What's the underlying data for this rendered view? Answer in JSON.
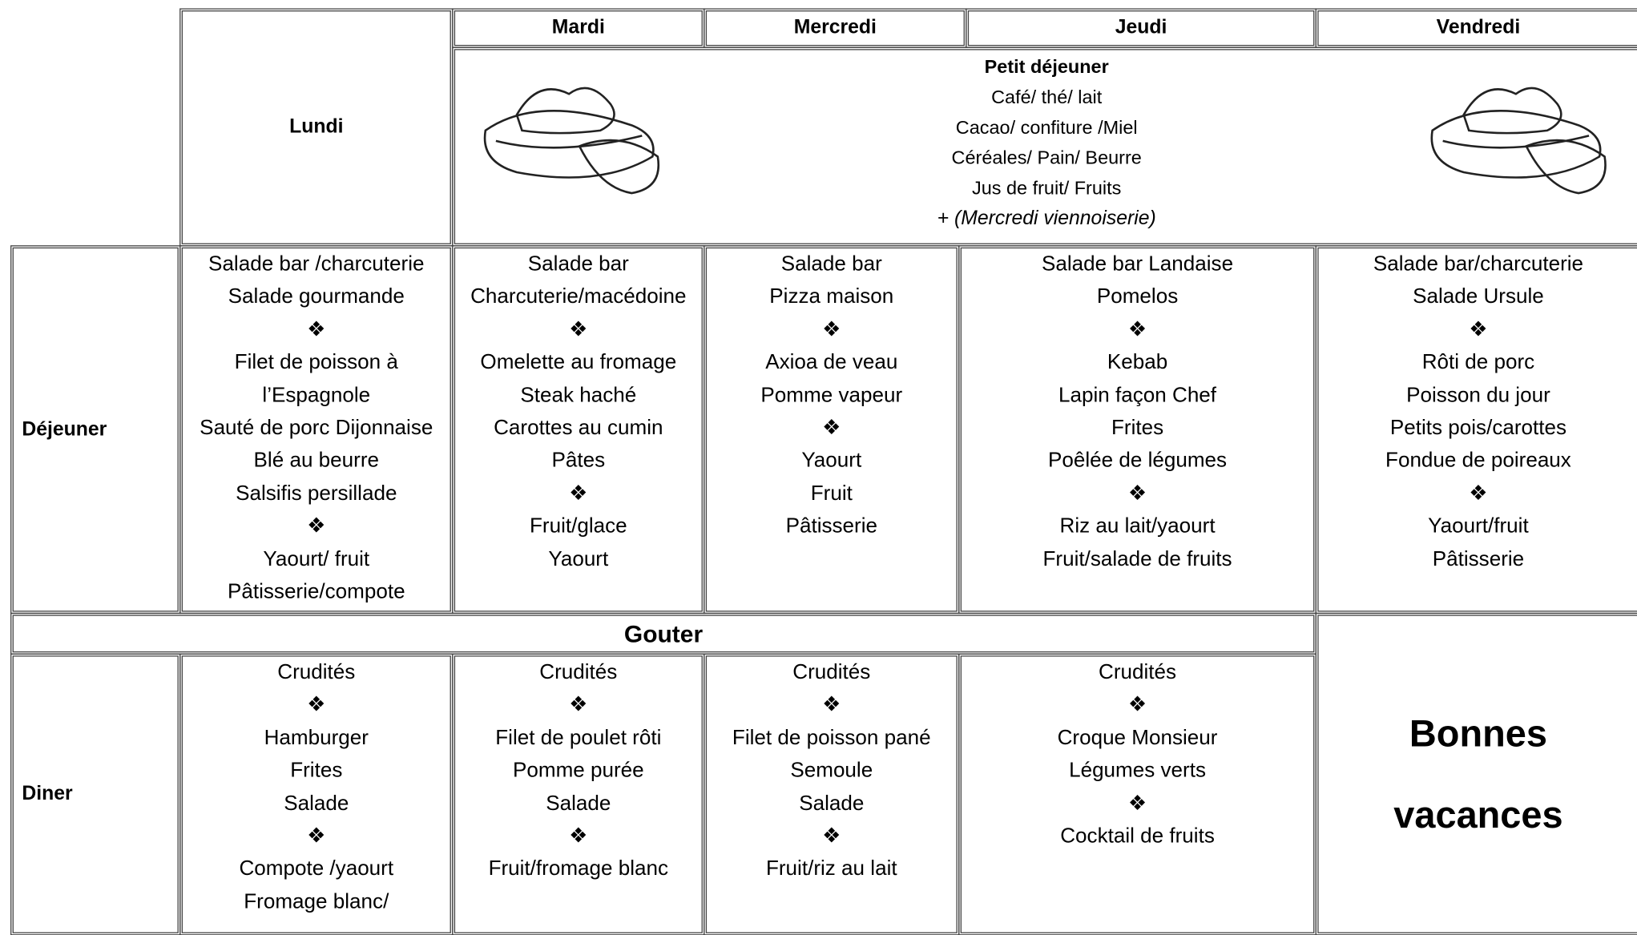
{
  "header": {
    "days": [
      "Lundi",
      "Mardi",
      "Mercredi",
      "Jeudi",
      "Vendredi"
    ]
  },
  "breakfast": {
    "title": "Petit déjeuner",
    "lines": [
      "Café/ thé/ lait",
      "Cacao/ confiture /Miel",
      "Céréales/ Pain/ Beurre",
      "Jus de fruit/ Fruits"
    ],
    "note": "+ (Mercredi viennoiserie)"
  },
  "lunch": {
    "label": "Déjeuner",
    "cells": [
      [
        "Salade bar /charcuterie",
        "Salade gourmande",
        "❖",
        "Filet de poisson à",
        "l’Espagnole",
        "Sauté de porc Dijonnaise",
        "Blé au beurre",
        "Salsifis persillade",
        "❖",
        "Yaourt/ fruit",
        "Pâtisserie/compote"
      ],
      [
        "Salade bar",
        "Charcuterie/macédoine",
        "❖",
        "Omelette au fromage",
        "Steak haché",
        "Carottes au cumin",
        "Pâtes",
        "❖",
        "Fruit/glace",
        "Yaourt"
      ],
      [
        "Salade bar",
        "Pizza maison",
        "❖",
        "Axioa de veau",
        "Pomme vapeur",
        "❖",
        "Yaourt",
        "Fruit",
        "Pâtisserie"
      ],
      [
        "Salade bar Landaise",
        "Pomelos",
        "❖",
        "Kebab",
        "Lapin façon Chef",
        "Frites",
        "Poêlée de légumes",
        "❖",
        "Riz au lait/yaourt",
        "Fruit/salade de fruits"
      ],
      [
        "Salade bar/charcuterie",
        "Salade Ursule",
        "❖",
        "Rôti de porc",
        "Poisson du jour",
        "Petits pois/carottes",
        "Fondue de poireaux",
        "❖",
        "Yaourt/fruit",
        "Pâtisserie"
      ]
    ]
  },
  "snack": {
    "label": "Gouter"
  },
  "dinner": {
    "label": "Diner",
    "cells": [
      [
        "Crudités",
        "❖",
        "Hamburger",
        "Frites",
        "Salade",
        "❖",
        "Compote /yaourt",
        "Fromage blanc/"
      ],
      [
        "Crudités",
        "❖",
        "Filet de poulet rôti",
        "Pomme purée",
        "Salade",
        "❖",
        "Fruit/fromage blanc"
      ],
      [
        "Crudités",
        "❖",
        "Filet de poisson pané",
        "Semoule",
        "Salade",
        "❖",
        "Fruit/riz au lait"
      ],
      [
        "Crudités",
        "❖",
        "Croque Monsieur",
        "Légumes verts",
        "❖",
        "Cocktail de fruits"
      ]
    ],
    "friday": [
      "Bonnes",
      "vacances"
    ]
  }
}
